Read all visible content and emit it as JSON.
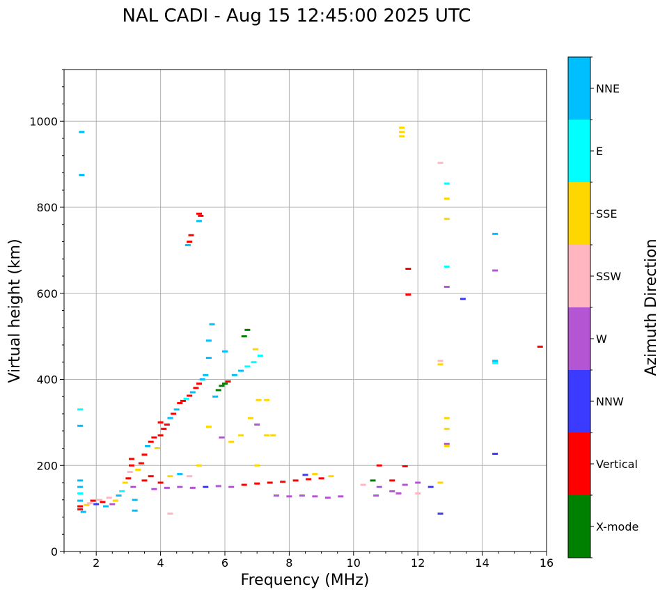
{
  "chart_data": {
    "type": "scatter",
    "title": "NAL CADI - Aug 15 12:45:00 2025 UTC",
    "xlabel": "Frequency (MHz)",
    "ylabel": "Virtual height (km)",
    "xlim": [
      1,
      16
    ],
    "ylim": [
      0,
      1120
    ],
    "xticks": [
      2,
      4,
      6,
      8,
      10,
      12,
      14,
      16
    ],
    "yticks": [
      0,
      200,
      400,
      600,
      800,
      1000
    ],
    "grid": true,
    "colorbar": {
      "title": "Azimuth Direction",
      "categories": [
        {
          "name": "X-mode",
          "color": "#008000"
        },
        {
          "name": "Vertical",
          "color": "#ff0000"
        },
        {
          "name": "NNW",
          "color": "#3b3bff"
        },
        {
          "name": "W",
          "color": "#b455d4"
        },
        {
          "name": "SSW",
          "color": "#ffb6c1"
        },
        {
          "name": "SSE",
          "color": "#ffd700"
        },
        {
          "name": "E",
          "color": "#00ffff"
        },
        {
          "name": "NNE",
          "color": "#00bfff"
        }
      ]
    },
    "points": [
      {
        "f": 1.55,
        "h": 975,
        "c": "NNE"
      },
      {
        "f": 1.55,
        "h": 875,
        "c": "NNE"
      },
      {
        "f": 1.5,
        "h": 330,
        "c": "E"
      },
      {
        "f": 1.5,
        "h": 292,
        "c": "NNE"
      },
      {
        "f": 1.5,
        "h": 165,
        "c": "NNE"
      },
      {
        "f": 1.5,
        "h": 150,
        "c": "NNE"
      },
      {
        "f": 1.5,
        "h": 135,
        "c": "E"
      },
      {
        "f": 1.5,
        "h": 118,
        "c": "NNE"
      },
      {
        "f": 1.5,
        "h": 105,
        "c": "Vertical"
      },
      {
        "f": 1.5,
        "h": 98,
        "c": "Vertical"
      },
      {
        "f": 1.6,
        "h": 92,
        "c": "NNE"
      },
      {
        "f": 1.7,
        "h": 108,
        "c": "SSE"
      },
      {
        "f": 1.8,
        "h": 112,
        "c": "SSW"
      },
      {
        "f": 1.9,
        "h": 118,
        "c": "Vertical"
      },
      {
        "f": 2.0,
        "h": 110,
        "c": "NNW"
      },
      {
        "f": 2.1,
        "h": 120,
        "c": "SSW"
      },
      {
        "f": 2.2,
        "h": 115,
        "c": "Vertical"
      },
      {
        "f": 2.3,
        "h": 105,
        "c": "NNE"
      },
      {
        "f": 2.4,
        "h": 125,
        "c": "SSW"
      },
      {
        "f": 2.5,
        "h": 110,
        "c": "W"
      },
      {
        "f": 2.6,
        "h": 118,
        "c": "SSE"
      },
      {
        "f": 2.7,
        "h": 130,
        "c": "NNE"
      },
      {
        "f": 2.8,
        "h": 140,
        "c": "E"
      },
      {
        "f": 2.9,
        "h": 160,
        "c": "SSE"
      },
      {
        "f": 3.0,
        "h": 170,
        "c": "Vertical"
      },
      {
        "f": 3.05,
        "h": 185,
        "c": "SSW"
      },
      {
        "f": 3.1,
        "h": 200,
        "c": "Vertical"
      },
      {
        "f": 3.1,
        "h": 215,
        "c": "Vertical"
      },
      {
        "f": 3.15,
        "h": 150,
        "c": "W"
      },
      {
        "f": 3.2,
        "h": 120,
        "c": "NNE"
      },
      {
        "f": 3.2,
        "h": 95,
        "c": "NNE"
      },
      {
        "f": 3.3,
        "h": 190,
        "c": "SSE"
      },
      {
        "f": 3.4,
        "h": 205,
        "c": "Vertical"
      },
      {
        "f": 3.5,
        "h": 225,
        "c": "Vertical"
      },
      {
        "f": 3.6,
        "h": 245,
        "c": "NNE"
      },
      {
        "f": 3.7,
        "h": 255,
        "c": "Vertical"
      },
      {
        "f": 3.8,
        "h": 265,
        "c": "Vertical"
      },
      {
        "f": 3.9,
        "h": 240,
        "c": "SSE"
      },
      {
        "f": 4.0,
        "h": 270,
        "c": "Vertical"
      },
      {
        "f": 4.0,
        "h": 300,
        "c": "Vertical"
      },
      {
        "f": 4.1,
        "h": 285,
        "c": "Vertical"
      },
      {
        "f": 4.2,
        "h": 295,
        "c": "Vertical"
      },
      {
        "f": 4.3,
        "h": 310,
        "c": "NNE"
      },
      {
        "f": 4.4,
        "h": 320,
        "c": "Vertical"
      },
      {
        "f": 4.5,
        "h": 330,
        "c": "NNE"
      },
      {
        "f": 4.6,
        "h": 345,
        "c": "Vertical"
      },
      {
        "f": 4.7,
        "h": 350,
        "c": "Vertical"
      },
      {
        "f": 4.8,
        "h": 355,
        "c": "E"
      },
      {
        "f": 4.9,
        "h": 362,
        "c": "Vertical"
      },
      {
        "f": 5.0,
        "h": 370,
        "c": "NNE"
      },
      {
        "f": 5.1,
        "h": 380,
        "c": "Vertical"
      },
      {
        "f": 5.2,
        "h": 390,
        "c": "Vertical"
      },
      {
        "f": 5.3,
        "h": 400,
        "c": "NNE"
      },
      {
        "f": 5.4,
        "h": 410,
        "c": "NNE"
      },
      {
        "f": 5.5,
        "h": 450,
        "c": "NNE"
      },
      {
        "f": 5.5,
        "h": 490,
        "c": "NNE"
      },
      {
        "f": 5.6,
        "h": 528,
        "c": "NNE"
      },
      {
        "f": 5.2,
        "h": 785,
        "c": "Vertical"
      },
      {
        "f": 5.25,
        "h": 780,
        "c": "Vertical"
      },
      {
        "f": 5.2,
        "h": 768,
        "c": "NNE"
      },
      {
        "f": 4.95,
        "h": 735,
        "c": "Vertical"
      },
      {
        "f": 4.9,
        "h": 720,
        "c": "Vertical"
      },
      {
        "f": 4.85,
        "h": 712,
        "c": "NNE"
      },
      {
        "f": 5.7,
        "h": 360,
        "c": "NNE"
      },
      {
        "f": 5.8,
        "h": 375,
        "c": "X-mode"
      },
      {
        "f": 5.9,
        "h": 385,
        "c": "X-mode"
      },
      {
        "f": 6.0,
        "h": 390,
        "c": "X-mode"
      },
      {
        "f": 6.1,
        "h": 395,
        "c": "Vertical"
      },
      {
        "f": 6.3,
        "h": 410,
        "c": "NNE"
      },
      {
        "f": 6.5,
        "h": 420,
        "c": "NNE"
      },
      {
        "f": 6.7,
        "h": 430,
        "c": "E"
      },
      {
        "f": 6.9,
        "h": 440,
        "c": "E"
      },
      {
        "f": 7.1,
        "h": 455,
        "c": "E"
      },
      {
        "f": 6.0,
        "h": 465,
        "c": "NNE"
      },
      {
        "f": 6.6,
        "h": 500,
        "c": "X-mode"
      },
      {
        "f": 6.7,
        "h": 515,
        "c": "X-mode"
      },
      {
        "f": 6.95,
        "h": 470,
        "c": "SSE"
      },
      {
        "f": 7.05,
        "h": 352,
        "c": "SSE"
      },
      {
        "f": 7.3,
        "h": 352,
        "c": "SSE"
      },
      {
        "f": 3.5,
        "h": 165,
        "c": "Vertical"
      },
      {
        "f": 3.7,
        "h": 175,
        "c": "Vertical"
      },
      {
        "f": 4.0,
        "h": 160,
        "c": "Vertical"
      },
      {
        "f": 4.3,
        "h": 175,
        "c": "SSE"
      },
      {
        "f": 4.6,
        "h": 180,
        "c": "NNE"
      },
      {
        "f": 4.9,
        "h": 175,
        "c": "SSW"
      },
      {
        "f": 5.2,
        "h": 200,
        "c": "SSE"
      },
      {
        "f": 5.5,
        "h": 290,
        "c": "SSE"
      },
      {
        "f": 5.9,
        "h": 265,
        "c": "W"
      },
      {
        "f": 6.2,
        "h": 255,
        "c": "SSE"
      },
      {
        "f": 6.5,
        "h": 270,
        "c": "SSE"
      },
      {
        "f": 6.8,
        "h": 310,
        "c": "SSE"
      },
      {
        "f": 7.0,
        "h": 295,
        "c": "W"
      },
      {
        "f": 7.3,
        "h": 270,
        "c": "SSE"
      },
      {
        "f": 7.5,
        "h": 270,
        "c": "SSE"
      },
      {
        "f": 7.0,
        "h": 200,
        "c": "SSE"
      },
      {
        "f": 4.3,
        "h": 88,
        "c": "SSW"
      },
      {
        "f": 3.8,
        "h": 145,
        "c": "W"
      },
      {
        "f": 4.2,
        "h": 148,
        "c": "W"
      },
      {
        "f": 4.6,
        "h": 150,
        "c": "W"
      },
      {
        "f": 5.0,
        "h": 148,
        "c": "W"
      },
      {
        "f": 5.4,
        "h": 150,
        "c": "NNW"
      },
      {
        "f": 5.8,
        "h": 152,
        "c": "W"
      },
      {
        "f": 6.2,
        "h": 150,
        "c": "W"
      },
      {
        "f": 6.6,
        "h": 155,
        "c": "Vertical"
      },
      {
        "f": 7.0,
        "h": 158,
        "c": "Vertical"
      },
      {
        "f": 7.4,
        "h": 160,
        "c": "Vertical"
      },
      {
        "f": 7.8,
        "h": 162,
        "c": "Vertical"
      },
      {
        "f": 8.2,
        "h": 165,
        "c": "Vertical"
      },
      {
        "f": 8.6,
        "h": 168,
        "c": "Vertical"
      },
      {
        "f": 9.0,
        "h": 170,
        "c": "Vertical"
      },
      {
        "f": 9.3,
        "h": 175,
        "c": "SSE"
      },
      {
        "f": 8.8,
        "h": 180,
        "c": "SSE"
      },
      {
        "f": 8.5,
        "h": 178,
        "c": "NNW"
      },
      {
        "f": 7.6,
        "h": 130,
        "c": "W"
      },
      {
        "f": 8.0,
        "h": 128,
        "c": "W"
      },
      {
        "f": 8.4,
        "h": 130,
        "c": "W"
      },
      {
        "f": 8.8,
        "h": 128,
        "c": "W"
      },
      {
        "f": 9.2,
        "h": 125,
        "c": "W"
      },
      {
        "f": 9.6,
        "h": 128,
        "c": "W"
      },
      {
        "f": 10.3,
        "h": 155,
        "c": "SSW"
      },
      {
        "f": 10.6,
        "h": 165,
        "c": "X-mode"
      },
      {
        "f": 10.8,
        "h": 200,
        "c": "Vertical"
      },
      {
        "f": 10.8,
        "h": 150,
        "c": "W"
      },
      {
        "f": 11.2,
        "h": 165,
        "c": "Vertical"
      },
      {
        "f": 11.2,
        "h": 140,
        "c": "W"
      },
      {
        "f": 11.6,
        "h": 155,
        "c": "W"
      },
      {
        "f": 11.6,
        "h": 198,
        "c": "Vertical"
      },
      {
        "f": 12.0,
        "h": 160,
        "c": "W"
      },
      {
        "f": 12.4,
        "h": 150,
        "c": "NNW"
      },
      {
        "f": 10.7,
        "h": 130,
        "c": "W"
      },
      {
        "f": 11.4,
        "h": 135,
        "c": "W"
      },
      {
        "f": 12.0,
        "h": 135,
        "c": "SSW"
      },
      {
        "f": 12.7,
        "h": 88,
        "c": "NNW"
      },
      {
        "f": 12.7,
        "h": 160,
        "c": "SSE"
      },
      {
        "f": 11.5,
        "h": 985,
        "c": "SSE"
      },
      {
        "f": 11.5,
        "h": 975,
        "c": "SSE"
      },
      {
        "f": 11.5,
        "h": 965,
        "c": "SSE"
      },
      {
        "f": 11.7,
        "h": 657,
        "c": "Vertical"
      },
      {
        "f": 11.7,
        "h": 597,
        "c": "Vertical"
      },
      {
        "f": 12.7,
        "h": 903,
        "c": "SSW"
      },
      {
        "f": 12.7,
        "h": 443,
        "c": "SSW"
      },
      {
        "f": 12.7,
        "h": 435,
        "c": "SSE"
      },
      {
        "f": 12.9,
        "h": 855,
        "c": "E"
      },
      {
        "f": 12.9,
        "h": 820,
        "c": "SSE"
      },
      {
        "f": 12.9,
        "h": 773,
        "c": "SSE"
      },
      {
        "f": 12.9,
        "h": 662,
        "c": "E"
      },
      {
        "f": 12.9,
        "h": 615,
        "c": "W"
      },
      {
        "f": 12.9,
        "h": 310,
        "c": "SSE"
      },
      {
        "f": 12.9,
        "h": 285,
        "c": "SSE"
      },
      {
        "f": 12.9,
        "h": 250,
        "c": "W"
      },
      {
        "f": 12.9,
        "h": 245,
        "c": "SSE"
      },
      {
        "f": 13.4,
        "h": 587,
        "c": "NNW"
      },
      {
        "f": 14.4,
        "h": 738,
        "c": "NNE"
      },
      {
        "f": 14.4,
        "h": 653,
        "c": "W"
      },
      {
        "f": 14.4,
        "h": 443,
        "c": "NNE"
      },
      {
        "f": 14.4,
        "h": 438,
        "c": "E"
      },
      {
        "f": 14.4,
        "h": 227,
        "c": "NNW"
      },
      {
        "f": 15.8,
        "h": 476,
        "c": "Vertical"
      }
    ]
  }
}
